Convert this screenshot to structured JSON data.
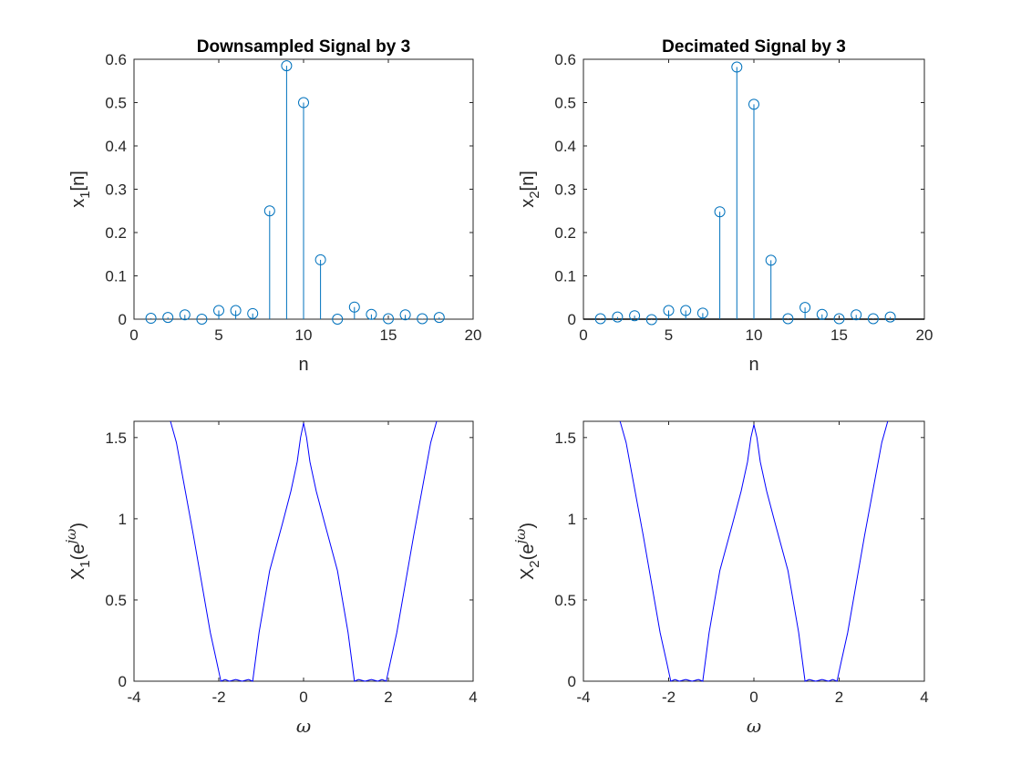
{
  "figure": {
    "background": "#ffffff",
    "axes_color": "#262626"
  },
  "chart_data": [
    {
      "type": "stem",
      "title": "Downsampled Signal by 3",
      "xlabel": "n",
      "ylabel": {
        "base": "x",
        "sub": "1",
        "rest": "[n]"
      },
      "xlim": [
        0,
        20
      ],
      "ylim": [
        0,
        0.6
      ],
      "xticks": [
        0,
        5,
        10,
        15,
        20
      ],
      "yticks": [
        0,
        0.1,
        0.2,
        0.3,
        0.4,
        0.5,
        0.6
      ],
      "xtick_labels": [
        "0",
        "5",
        "10",
        "15",
        "20"
      ],
      "ytick_labels": [
        "0",
        "0.1",
        "0.2",
        "0.3",
        "0.4",
        "0.5",
        "0.6"
      ],
      "color": "#0072bd",
      "baseline": false,
      "x": [
        1,
        2,
        3,
        4,
        5,
        6,
        7,
        8,
        9,
        10,
        11,
        12,
        13,
        14,
        15,
        16,
        17,
        18
      ],
      "y": [
        0.002,
        0.004,
        0.01,
        0.0,
        0.02,
        0.02,
        0.013,
        0.25,
        0.585,
        0.5,
        0.137,
        0.0,
        0.028,
        0.011,
        0.001,
        0.01,
        0.001,
        0.004
      ]
    },
    {
      "type": "stem",
      "title": "Decimated Signal by 3",
      "xlabel": "n",
      "ylabel": {
        "base": "x",
        "sub": "2",
        "rest": "[n]"
      },
      "xlim": [
        0,
        20
      ],
      "ylim": [
        0,
        0.6
      ],
      "xticks": [
        0,
        5,
        10,
        15,
        20
      ],
      "yticks": [
        0,
        0.1,
        0.2,
        0.3,
        0.4,
        0.5,
        0.6
      ],
      "xtick_labels": [
        "0",
        "5",
        "10",
        "15",
        "20"
      ],
      "ytick_labels": [
        "0",
        "0.1",
        "0.2",
        "0.3",
        "0.4",
        "0.5",
        "0.6"
      ],
      "color": "#0072bd",
      "baseline": true,
      "x": [
        1,
        2,
        3,
        4,
        5,
        6,
        7,
        8,
        9,
        10,
        11,
        12,
        13,
        14,
        15,
        16,
        17,
        18
      ],
      "y": [
        0.001,
        0.005,
        0.008,
        -0.001,
        0.02,
        0.02,
        0.014,
        0.248,
        0.582,
        0.496,
        0.136,
        0.001,
        0.027,
        0.011,
        0.001,
        0.01,
        0.001,
        0.005
      ]
    },
    {
      "type": "line",
      "title": "",
      "xlabel": "ω",
      "ylabel": {
        "base": "X",
        "sub": "1",
        "rest": "(e",
        "sup": "jω",
        "close": ")"
      },
      "xlim": [
        -4,
        4
      ],
      "ylim": [
        0,
        1.6
      ],
      "xticks": [
        -4,
        -2,
        0,
        2,
        4
      ],
      "yticks": [
        0,
        0.5,
        1,
        1.5
      ],
      "xtick_labels": [
        "-4",
        "-2",
        "0",
        "2",
        "4"
      ],
      "ytick_labels": [
        "0",
        "0.5",
        "1",
        "1.5"
      ],
      "color": "#0000ff",
      "x": [
        -3.14,
        -3.0,
        -2.6,
        -2.2,
        -2.05,
        -1.95,
        -1.85,
        -1.75,
        -1.6,
        -1.45,
        -1.3,
        -1.2,
        -1.05,
        -0.8,
        -0.5,
        -0.3,
        -0.15,
        -0.07,
        0.0,
        0.07,
        0.15,
        0.3,
        0.5,
        0.8,
        1.05,
        1.2,
        1.3,
        1.45,
        1.6,
        1.75,
        1.85,
        1.95,
        2.05,
        2.2,
        2.6,
        3.0,
        3.14
      ],
      "y": [
        1.6,
        1.47,
        0.9,
        0.3,
        0.12,
        0.0,
        0.01,
        0.0,
        0.01,
        0.0,
        0.01,
        0.0,
        0.3,
        0.68,
        0.97,
        1.17,
        1.35,
        1.5,
        1.59,
        1.5,
        1.35,
        1.17,
        0.97,
        0.68,
        0.3,
        0.0,
        0.01,
        0.0,
        0.01,
        0.0,
        0.01,
        0.0,
        0.12,
        0.3,
        0.9,
        1.47,
        1.6
      ]
    },
    {
      "type": "line",
      "title": "",
      "xlabel": "ω",
      "ylabel": {
        "base": "X",
        "sub": "2",
        "rest": "(e",
        "sup": "jω",
        "close": ")"
      },
      "xlim": [
        -4,
        4
      ],
      "ylim": [
        0,
        1.6
      ],
      "xticks": [
        -4,
        -2,
        0,
        2,
        4
      ],
      "yticks": [
        0,
        0.5,
        1,
        1.5
      ],
      "xtick_labels": [
        "-4",
        "-2",
        "0",
        "2",
        "4"
      ],
      "ytick_labels": [
        "0",
        "0.5",
        "1",
        "1.5"
      ],
      "color": "#0000ff",
      "x": [
        -3.14,
        -3.0,
        -2.6,
        -2.2,
        -2.05,
        -1.95,
        -1.85,
        -1.75,
        -1.6,
        -1.45,
        -1.3,
        -1.2,
        -1.05,
        -0.8,
        -0.5,
        -0.3,
        -0.15,
        -0.07,
        0.0,
        0.07,
        0.15,
        0.3,
        0.5,
        0.8,
        1.05,
        1.2,
        1.3,
        1.45,
        1.6,
        1.75,
        1.85,
        1.95,
        2.05,
        2.2,
        2.6,
        3.0,
        3.14
      ],
      "y": [
        1.6,
        1.47,
        0.9,
        0.3,
        0.12,
        0.0,
        0.01,
        0.0,
        0.01,
        0.0,
        0.01,
        0.0,
        0.3,
        0.68,
        0.97,
        1.17,
        1.35,
        1.5,
        1.58,
        1.5,
        1.35,
        1.17,
        0.97,
        0.68,
        0.3,
        0.0,
        0.01,
        0.0,
        0.01,
        0.0,
        0.01,
        0.0,
        0.12,
        0.3,
        0.9,
        1.47,
        1.6
      ]
    }
  ]
}
